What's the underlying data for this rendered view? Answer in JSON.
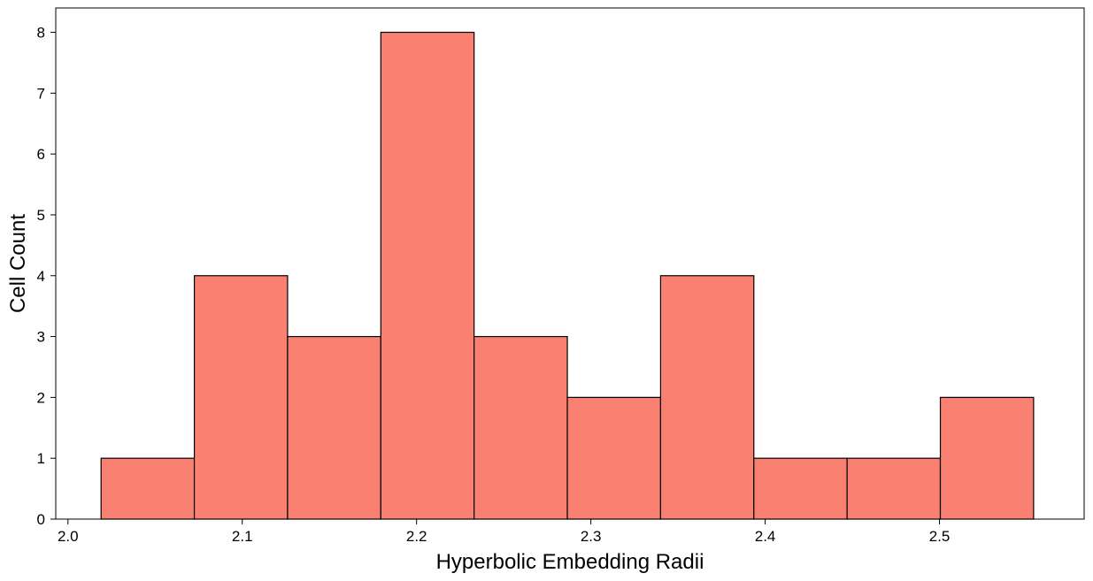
{
  "chart_data": {
    "type": "histogram",
    "xlabel": "Hyperbolic Embedding Radii",
    "ylabel": "Cell Count",
    "xlim": [
      1.993,
      2.583
    ],
    "ylim": [
      0,
      8.4
    ],
    "x_ticks": [
      2.0,
      2.1,
      2.2,
      2.3,
      2.4,
      2.5
    ],
    "x_tick_labels": [
      "2.0",
      "2.1",
      "2.2",
      "2.3",
      "2.4",
      "2.5"
    ],
    "y_ticks": [
      0,
      1,
      2,
      3,
      4,
      5,
      6,
      7,
      8
    ],
    "y_tick_labels": [
      "0",
      "1",
      "2",
      "3",
      "4",
      "5",
      "6",
      "7",
      "8"
    ],
    "bin_edges": [
      2.019,
      2.0725,
      2.126,
      2.1795,
      2.233,
      2.2865,
      2.34,
      2.3935,
      2.447,
      2.5005,
      2.554
    ],
    "counts": [
      1,
      4,
      3,
      8,
      3,
      2,
      4,
      1,
      1,
      2
    ],
    "grid": false,
    "legend": "none",
    "bar_color": "#fa8072",
    "edge_color": "#000000"
  }
}
